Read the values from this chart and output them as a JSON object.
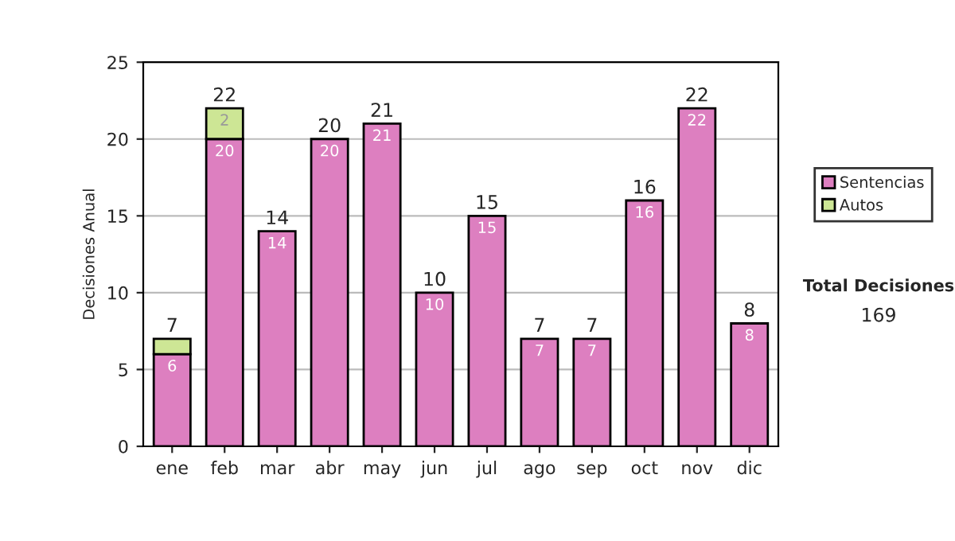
{
  "chart_data": {
    "type": "bar",
    "stacked": true,
    "ylabel": "Decisiones Anual",
    "categories": [
      "ene",
      "feb",
      "mar",
      "abr",
      "may",
      "jun",
      "jul",
      "ago",
      "sep",
      "oct",
      "nov",
      "dic"
    ],
    "series": [
      {
        "name": "Sentencias",
        "color": "#dd7fc0",
        "values": [
          6,
          20,
          14,
          20,
          21,
          10,
          15,
          7,
          7,
          16,
          22,
          8
        ],
        "value_labels": [
          "6",
          "20",
          "14",
          "20",
          "21",
          "10",
          "15",
          "7",
          "7",
          "16",
          "22",
          "8"
        ]
      },
      {
        "name": "Autos",
        "color": "#cde695",
        "values": [
          1,
          2,
          null,
          null,
          null,
          null,
          null,
          null,
          null,
          null,
          null,
          null
        ],
        "value_labels": [
          null,
          "2",
          null,
          null,
          null,
          null,
          null,
          null,
          null,
          null,
          null,
          null
        ]
      }
    ],
    "totals": [
      "7",
      "22",
      "14",
      "20",
      "21",
      "10",
      "15",
      "7",
      "7",
      "16",
      "22",
      "8"
    ],
    "ylim": [
      0,
      25
    ],
    "yticks": [
      0,
      5,
      10,
      15,
      20,
      25
    ],
    "grid": "y",
    "legend": "right",
    "annotations": [
      "Total Decisiones",
      "169"
    ]
  }
}
